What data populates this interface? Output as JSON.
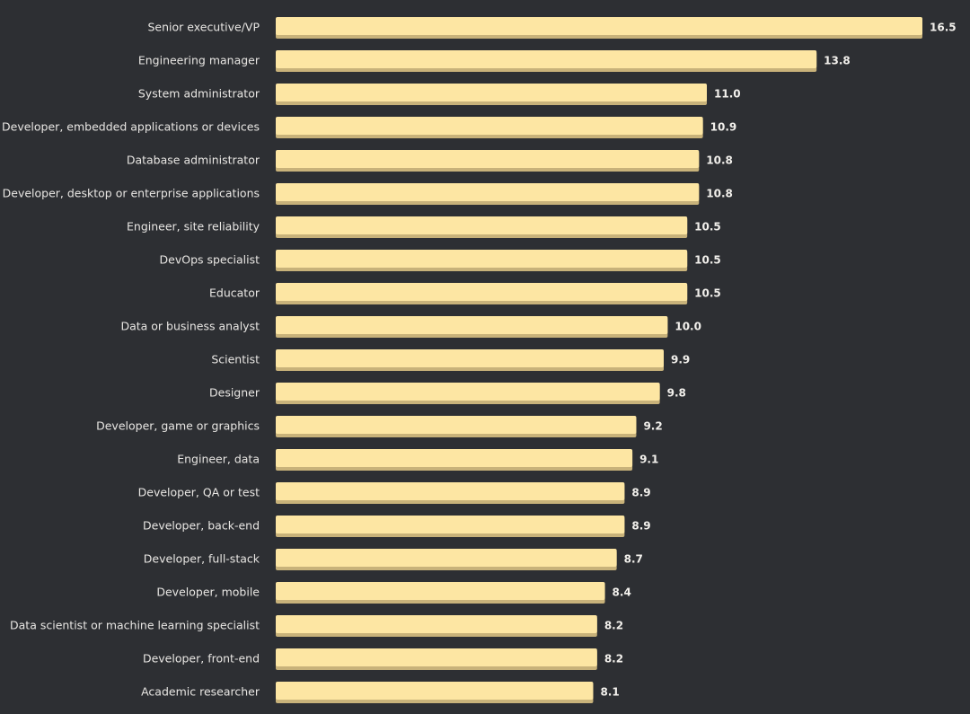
{
  "chart_data": {
    "type": "bar",
    "orientation": "horizontal",
    "title": "",
    "xlabel": "",
    "ylabel": "",
    "categories": [
      "Senior executive/VP",
      "Engineering manager",
      "System administrator",
      "Developer, embedded applications or devices",
      "Database administrator",
      "Developer, desktop or enterprise applications",
      "Engineer, site reliability",
      "DevOps specialist",
      "Educator",
      "Data or business analyst",
      "Scientist",
      "Designer",
      "Developer, game or graphics",
      "Engineer, data",
      "Developer, QA or test",
      "Developer, back-end",
      "Developer, full-stack",
      "Developer, mobile",
      "Data scientist or machine learning specialist",
      "Developer, front-end",
      "Academic researcher"
    ],
    "values": [
      16.5,
      13.8,
      11.0,
      10.9,
      10.8,
      10.8,
      10.5,
      10.5,
      10.5,
      10.0,
      9.9,
      9.8,
      9.2,
      9.1,
      8.9,
      8.9,
      8.7,
      8.4,
      8.2,
      8.2,
      8.1
    ],
    "value_labels": [
      "16.5",
      "13.8",
      "11.0",
      "10.9",
      "10.8",
      "10.8",
      "10.5",
      "10.5",
      "10.5",
      "10.0",
      "9.9",
      "9.8",
      "9.2",
      "9.1",
      "8.9",
      "8.9",
      "8.7",
      "8.4",
      "8.2",
      "8.2",
      "8.1"
    ],
    "xlim": [
      0,
      16.5
    ],
    "grid": false,
    "legend": "none",
    "colors": {
      "background": "#2d2f33",
      "bar": "#fde6a3",
      "bar_shadow": "#c8b27a",
      "label": "#e8e6e3",
      "value": "#f2f0ec"
    }
  }
}
